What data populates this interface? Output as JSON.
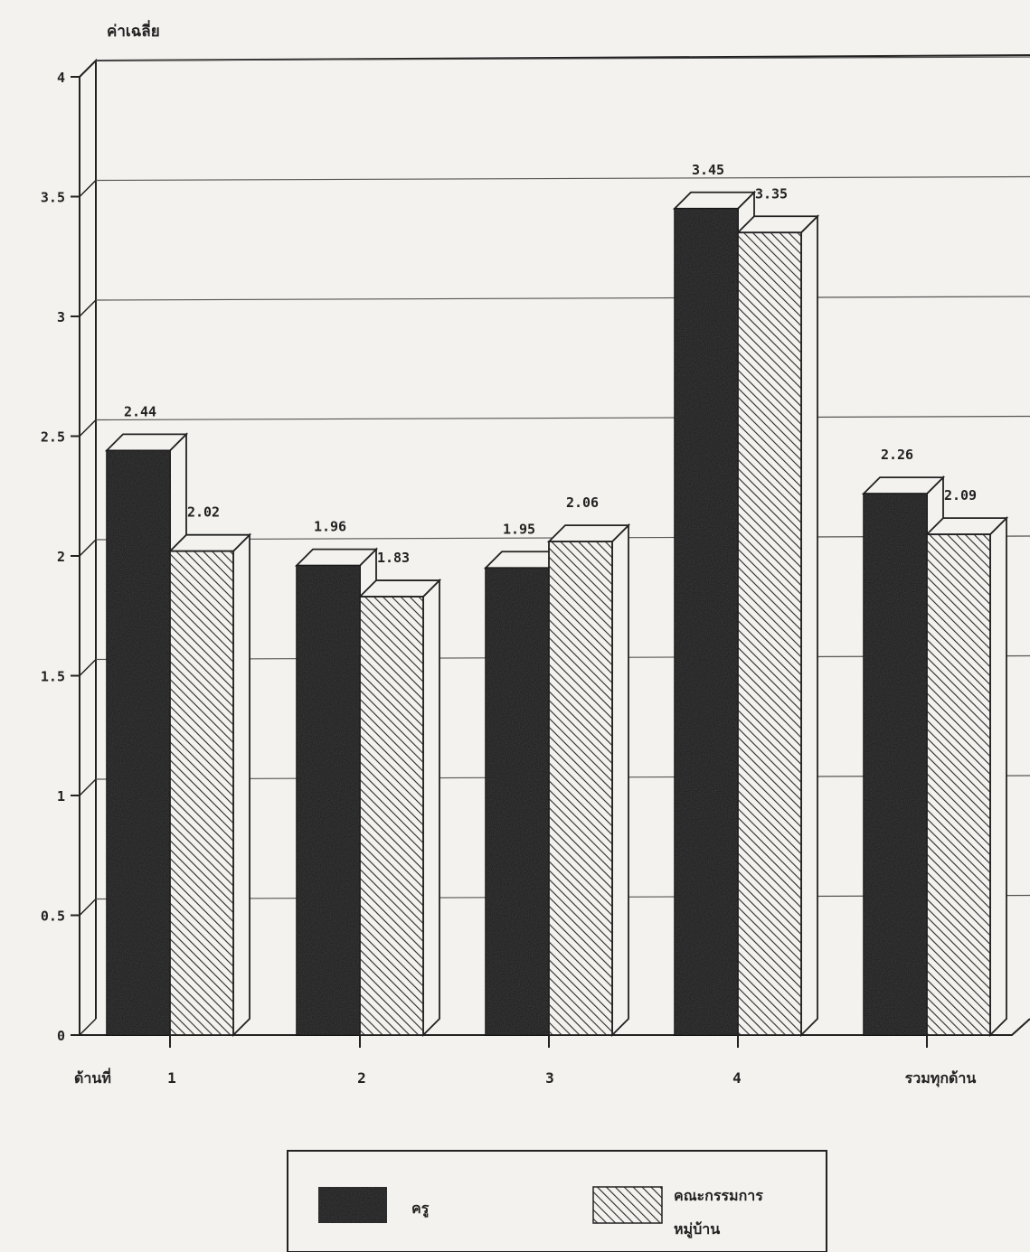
{
  "chart_data": {
    "type": "bar",
    "ylabel": "ค่าเฉลี่ย",
    "xlabel_prefix": "ด้านที่",
    "categories": [
      "1",
      "2",
      "3",
      "4",
      "รวมทุกด้าน"
    ],
    "series": [
      {
        "name": "ครู",
        "values": [
          2.44,
          1.96,
          1.95,
          3.45,
          2.26
        ]
      },
      {
        "name": "คณะกรรมการหมู่บ้าน",
        "values": [
          2.02,
          1.83,
          2.06,
          3.35,
          2.09
        ]
      }
    ],
    "value_labels": [
      [
        "2.44",
        "1.96",
        "1.95",
        "3.45",
        "2.26"
      ],
      [
        "2.02",
        "1.83",
        "2.06",
        "3.35",
        "2.09"
      ]
    ],
    "ylim": [
      0,
      4
    ],
    "yticks": [
      "0",
      "0.5",
      "1",
      "1.5",
      "2",
      "2.5",
      "3",
      "3.5",
      "4"
    ],
    "grid": true,
    "legend_position": "bottom-center",
    "legend": [
      {
        "label_line1": "ครู",
        "label_line2": "",
        "fill": "dark-speckled"
      },
      {
        "label_line1": "คณะกรรมการ",
        "label_line2": "หมู่บ้าน",
        "fill": "diagonal-hatch"
      }
    ],
    "colors": {
      "series_1": "#1c1c1c",
      "series_2_hatch": "#333333",
      "background": "#f4f2ee"
    }
  }
}
